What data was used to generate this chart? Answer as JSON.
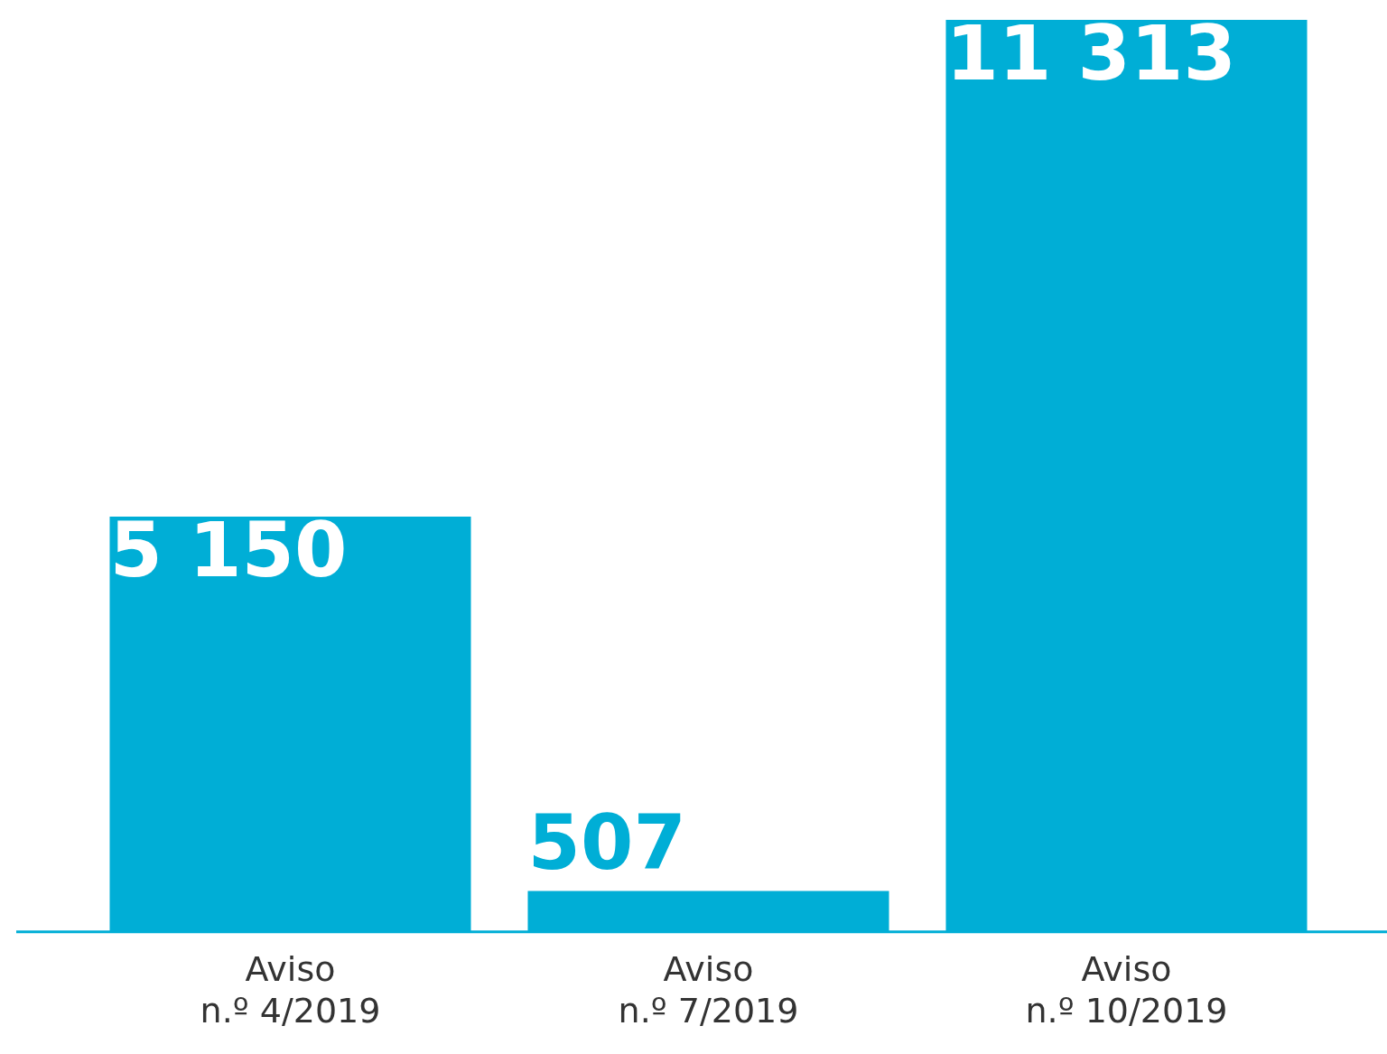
{
  "chart_data": {
    "type": "bar",
    "categories": [
      "Aviso\nn.º 4/2019",
      "Aviso\nn.º 7/2019",
      "Aviso\nn.º 10/2019"
    ],
    "values": [
      5150,
      507,
      11313
    ],
    "color": "#00aed6",
    "value_labels": [
      "5 150",
      "507",
      "11 313"
    ],
    "tick_labels": "x",
    "grid": false,
    "legend": false
  }
}
